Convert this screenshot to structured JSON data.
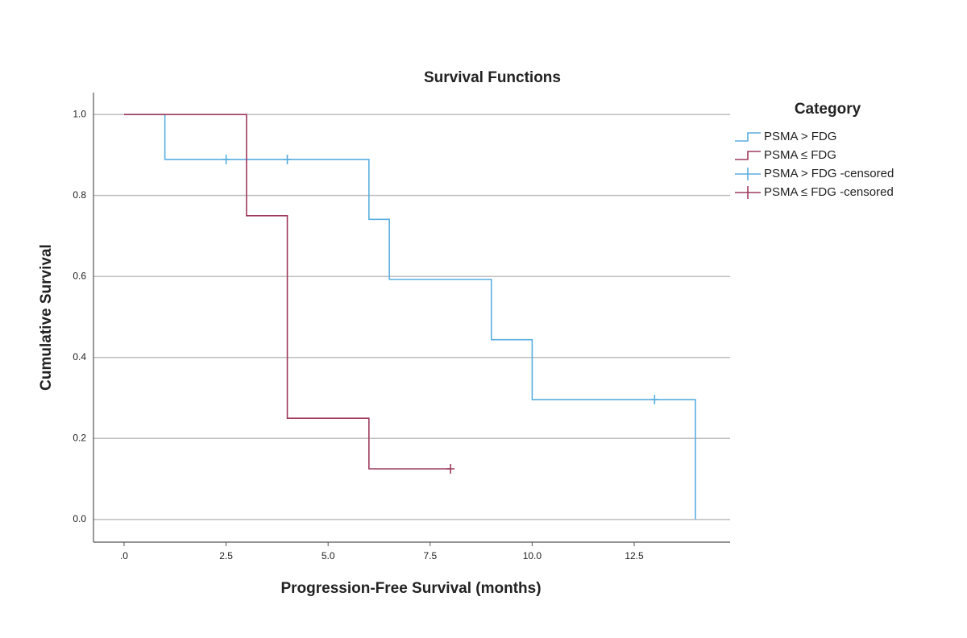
{
  "chart_data": {
    "type": "step",
    "title": "Survival Functions",
    "x_label": "Progression-Free Survival (months)",
    "y_label": "Cumulative Survival",
    "legend_title": "Category",
    "legend_position": "right",
    "grid": true,
    "xlim": [
      -0.75,
      14.85
    ],
    "ylim": [
      -0.056,
      1.054
    ],
    "xticks": [
      {
        "value": 0,
        "label": ".0"
      },
      2.5,
      {
        "value": 5,
        "label": "5.0"
      },
      7.5,
      {
        "value": 10,
        "label": "10.0"
      },
      12.5
    ],
    "yticks": [
      {
        "value": 0,
        "label": "0.0"
      },
      0.2,
      0.4,
      0.6,
      0.8,
      {
        "value": 1,
        "label": "1.0"
      }
    ],
    "series": [
      {
        "name": "PSMA > FDG",
        "color": "#5aaee0",
        "marker": "step",
        "x": [
          0,
          1,
          6,
          6.5,
          9,
          10,
          14
        ],
        "values": [
          1,
          0.889,
          0.741,
          0.593,
          0.444,
          0.296,
          0
        ]
      },
      {
        "name": "PSMA ≤ FDG",
        "color": "#9e3a5e",
        "marker": "step",
        "x": [
          0,
          3,
          4,
          6,
          8
        ],
        "values": [
          1,
          0.75,
          0.25,
          0.125,
          0.125
        ]
      },
      {
        "name": "PSMA > FDG -censored",
        "color": "#5aaee0",
        "marker": "plus",
        "x": [
          2.5,
          4,
          13
        ],
        "values": [
          0.889,
          0.889,
          0.296
        ]
      },
      {
        "name": "PSMA ≤ FDG -censored",
        "color": "#9e3a5e",
        "marker": "plus",
        "x": [
          8
        ],
        "values": [
          0.125
        ]
      }
    ]
  }
}
